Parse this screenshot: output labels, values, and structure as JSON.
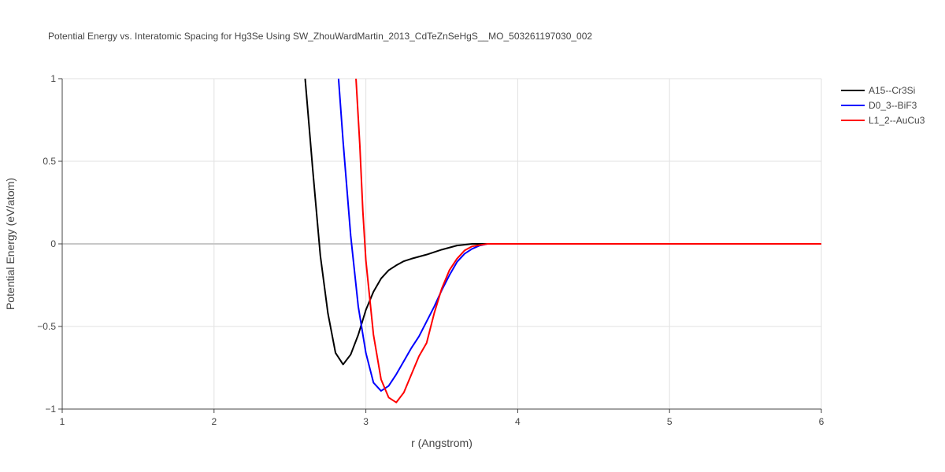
{
  "chart_data": {
    "type": "line",
    "title": "Potential Energy vs. Interatomic Spacing for Hg3Se Using SW_ZhouWardMartin_2013_CdTeZnSeHgS__MO_503261197030_002",
    "x_label": "r (Angstrom)",
    "y_label": "Potential Energy (eV/atom)",
    "xlim": [
      1,
      6
    ],
    "xticks": [
      1,
      2,
      3,
      4,
      5,
      6
    ],
    "ylim": [
      -1,
      1
    ],
    "yticks": [
      {
        "value": -1,
        "label": "−1"
      },
      {
        "value": -0.5,
        "label": "−0.5"
      },
      0,
      0.5,
      1
    ],
    "grid": true,
    "legend": "right",
    "series": [
      {
        "name": "A15--Cr3Si",
        "color": "#000000",
        "x": [
          2.6,
          2.65,
          2.7,
          2.75,
          2.8,
          2.85,
          2.9,
          2.95,
          3.0,
          3.05,
          3.1,
          3.15,
          3.2,
          3.25,
          3.3,
          3.4,
          3.5,
          3.6,
          3.7,
          4,
          5,
          6
        ],
        "values": [
          1.0,
          0.45,
          -0.07,
          -0.42,
          -0.66,
          -0.73,
          -0.67,
          -0.55,
          -0.4,
          -0.29,
          -0.21,
          -0.16,
          -0.13,
          -0.105,
          -0.09,
          -0.065,
          -0.035,
          -0.01,
          0,
          0,
          0,
          0
        ]
      },
      {
        "name": "D0_3--BiF3",
        "color": "#0000ff",
        "x": [
          2.82,
          2.85,
          2.9,
          2.95,
          3.0,
          3.05,
          3.1,
          3.15,
          3.2,
          3.25,
          3.3,
          3.35,
          3.4,
          3.45,
          3.5,
          3.55,
          3.6,
          3.65,
          3.7,
          3.75,
          3.8,
          4,
          5,
          6
        ],
        "values": [
          1.0,
          0.62,
          0.05,
          -0.38,
          -0.66,
          -0.84,
          -0.89,
          -0.86,
          -0.79,
          -0.71,
          -0.63,
          -0.56,
          -0.47,
          -0.38,
          -0.28,
          -0.19,
          -0.11,
          -0.06,
          -0.03,
          -0.01,
          0,
          0,
          0,
          0
        ]
      },
      {
        "name": "L1_2--AuCu3",
        "color": "#ff0000",
        "x": [
          2.935,
          2.96,
          2.98,
          3.0,
          3.05,
          3.1,
          3.15,
          3.2,
          3.25,
          3.3,
          3.35,
          3.4,
          3.45,
          3.5,
          3.55,
          3.6,
          3.65,
          3.7,
          3.8,
          4,
          5,
          6
        ],
        "values": [
          1.0,
          0.6,
          0.2,
          -0.1,
          -0.55,
          -0.82,
          -0.93,
          -0.96,
          -0.9,
          -0.79,
          -0.68,
          -0.6,
          -0.42,
          -0.27,
          -0.16,
          -0.09,
          -0.04,
          -0.015,
          0,
          0,
          0,
          0
        ]
      }
    ]
  }
}
